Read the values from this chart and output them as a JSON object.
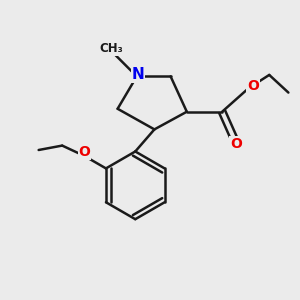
{
  "background_color": "#ebebeb",
  "bond_color": "#1a1a1a",
  "bond_width": 1.8,
  "N_color": "#0000ee",
  "O_color": "#ee0000",
  "text_fontsize": 10,
  "figsize": [
    3.0,
    3.0
  ],
  "dpi": 100,
  "xlim": [
    0,
    10
  ],
  "ylim": [
    0,
    10
  ]
}
